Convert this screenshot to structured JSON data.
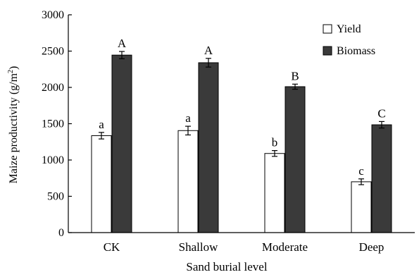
{
  "chart_data": {
    "type": "bar",
    "categories": [
      "CK",
      "Shallow",
      "Moderate",
      "Deep"
    ],
    "series": [
      {
        "name": "Yield",
        "color": "#ffffff",
        "values": [
          1335,
          1405,
          1090,
          700
        ],
        "errors": [
          45,
          60,
          40,
          40
        ],
        "letters": [
          "a",
          "a",
          "b",
          "c"
        ]
      },
      {
        "name": "Biomass",
        "color": "#3a3a3a",
        "values": [
          2445,
          2340,
          2010,
          1485
        ],
        "errors": [
          50,
          60,
          35,
          45
        ],
        "letters": [
          "A",
          "A",
          "B",
          "C"
        ]
      }
    ],
    "xlabel": "Sand burial level",
    "ylabel_main": "Maize productivity (g/m",
    "ylabel_sup": "2",
    "ylabel_tail": ")",
    "ylim": [
      0,
      3000
    ],
    "yticks": [
      "0",
      "500",
      "1000",
      "1500",
      "2000",
      "2500",
      "3000"
    ],
    "grid": false,
    "legend_position": "top-right"
  }
}
